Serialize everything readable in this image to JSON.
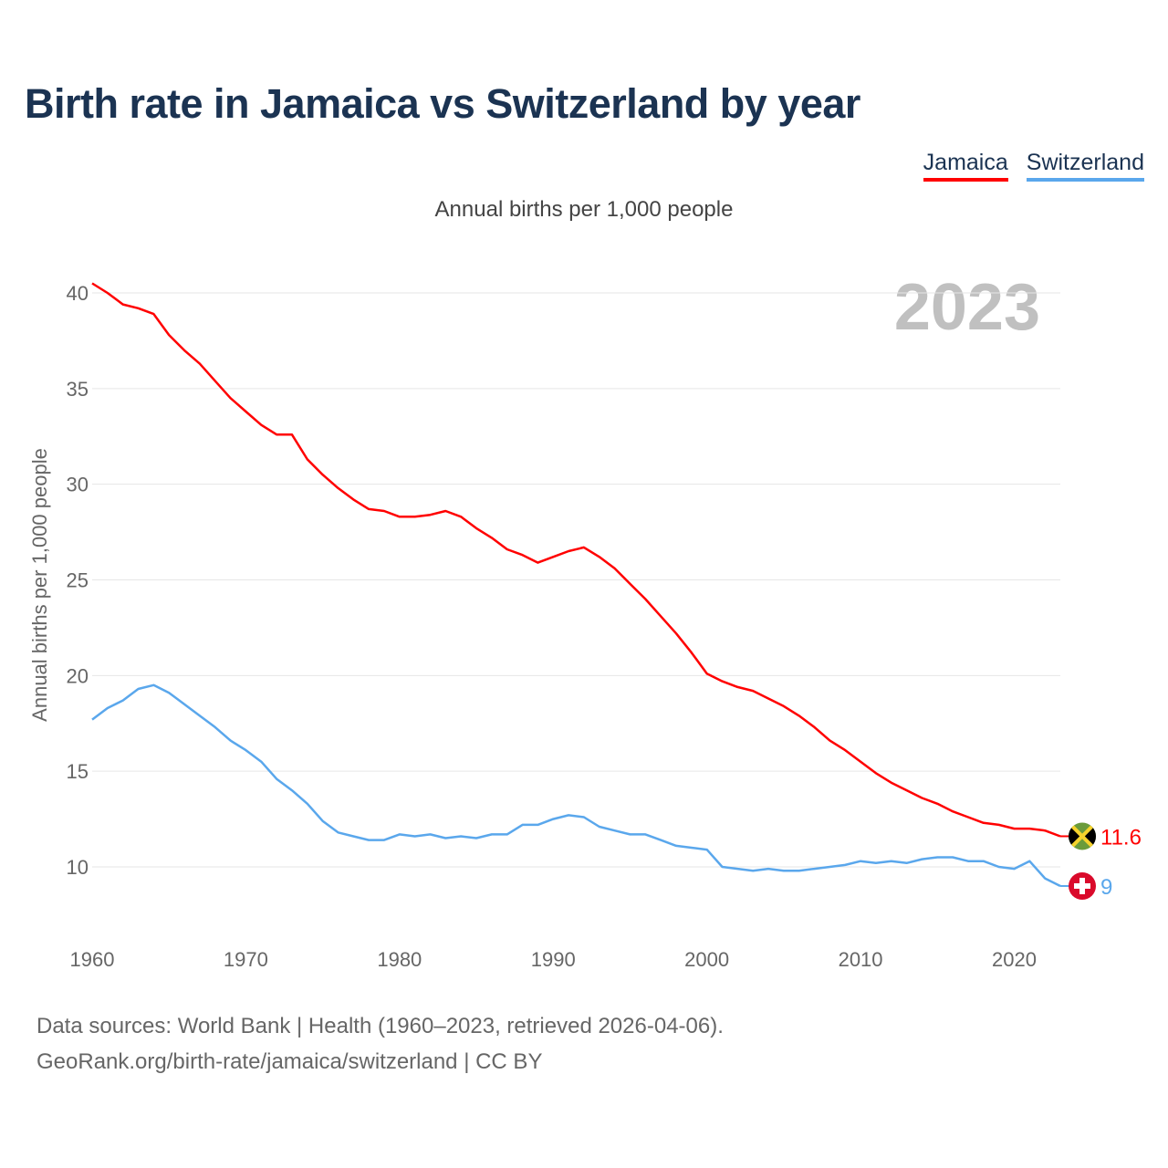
{
  "title": "Birth rate in Jamaica vs Switzerland by year",
  "legend": [
    {
      "label": "Jamaica",
      "color": "#ff0000"
    },
    {
      "label": "Switzerland",
      "color": "#5aa7ec"
    }
  ],
  "subtitle": "Annual births per 1,000 people",
  "year_badge": "2023",
  "footer": {
    "line1": "Data sources: World Bank | Health (1960–2023, retrieved 2026-04-06).",
    "line2": "GeoRank.org/birth-rate/jamaica/switzerland | CC BY"
  },
  "chart_data": {
    "type": "line",
    "title": "Birth rate in Jamaica vs Switzerland by year",
    "xlabel": "",
    "ylabel": "Annual births per 1,000 people",
    "xlim": [
      1960,
      2023
    ],
    "ylim": [
      10,
      40
    ],
    "x_ticks": [
      "1960",
      "1970",
      "1980",
      "1990",
      "2000",
      "2010",
      "2020"
    ],
    "y_ticks": [
      "10",
      "15",
      "20",
      "25",
      "30",
      "35",
      "40"
    ],
    "grid": true,
    "legend_position": "top-right",
    "x": [
      1960,
      1961,
      1962,
      1963,
      1964,
      1965,
      1966,
      1967,
      1968,
      1969,
      1970,
      1971,
      1972,
      1973,
      1974,
      1975,
      1976,
      1977,
      1978,
      1979,
      1980,
      1981,
      1982,
      1983,
      1984,
      1985,
      1986,
      1987,
      1988,
      1989,
      1990,
      1991,
      1992,
      1993,
      1994,
      1995,
      1996,
      1997,
      1998,
      1999,
      2000,
      2001,
      2002,
      2003,
      2004,
      2005,
      2006,
      2007,
      2008,
      2009,
      2010,
      2011,
      2012,
      2013,
      2014,
      2015,
      2016,
      2017,
      2018,
      2019,
      2020,
      2021,
      2022,
      2023
    ],
    "series": [
      {
        "name": "Jamaica",
        "color": "#ff0000",
        "end_label": "11.6",
        "values": [
          40.5,
          40.0,
          39.4,
          39.2,
          38.9,
          37.8,
          37.0,
          36.3,
          35.4,
          34.5,
          33.8,
          33.1,
          32.6,
          32.6,
          31.3,
          30.5,
          29.8,
          29.2,
          28.7,
          28.6,
          28.3,
          28.3,
          28.4,
          28.6,
          28.3,
          27.7,
          27.2,
          26.6,
          26.3,
          25.9,
          26.2,
          26.5,
          26.7,
          26.2,
          25.6,
          24.8,
          24.0,
          23.1,
          22.2,
          21.2,
          20.1,
          19.7,
          19.4,
          19.2,
          18.8,
          18.4,
          17.9,
          17.3,
          16.6,
          16.1,
          15.5,
          14.9,
          14.4,
          14.0,
          13.6,
          13.3,
          12.9,
          12.6,
          12.3,
          12.2,
          12.0,
          12.0,
          11.9,
          11.6
        ]
      },
      {
        "name": "Switzerland",
        "color": "#5aa7ec",
        "end_label": "9",
        "values": [
          17.7,
          18.3,
          18.7,
          19.3,
          19.5,
          19.1,
          18.5,
          17.9,
          17.3,
          16.6,
          16.1,
          15.5,
          14.6,
          14.0,
          13.3,
          12.4,
          11.8,
          11.6,
          11.4,
          11.4,
          11.7,
          11.6,
          11.7,
          11.5,
          11.6,
          11.5,
          11.7,
          11.7,
          12.2,
          12.2,
          12.5,
          12.7,
          12.6,
          12.1,
          11.9,
          11.7,
          11.7,
          11.4,
          11.1,
          11.0,
          10.9,
          10.0,
          9.9,
          9.8,
          9.9,
          9.8,
          9.8,
          9.9,
          10.0,
          10.1,
          10.3,
          10.2,
          10.3,
          10.2,
          10.4,
          10.5,
          10.5,
          10.3,
          10.3,
          10.0,
          9.9,
          10.3,
          9.4,
          9.0
        ]
      }
    ]
  }
}
